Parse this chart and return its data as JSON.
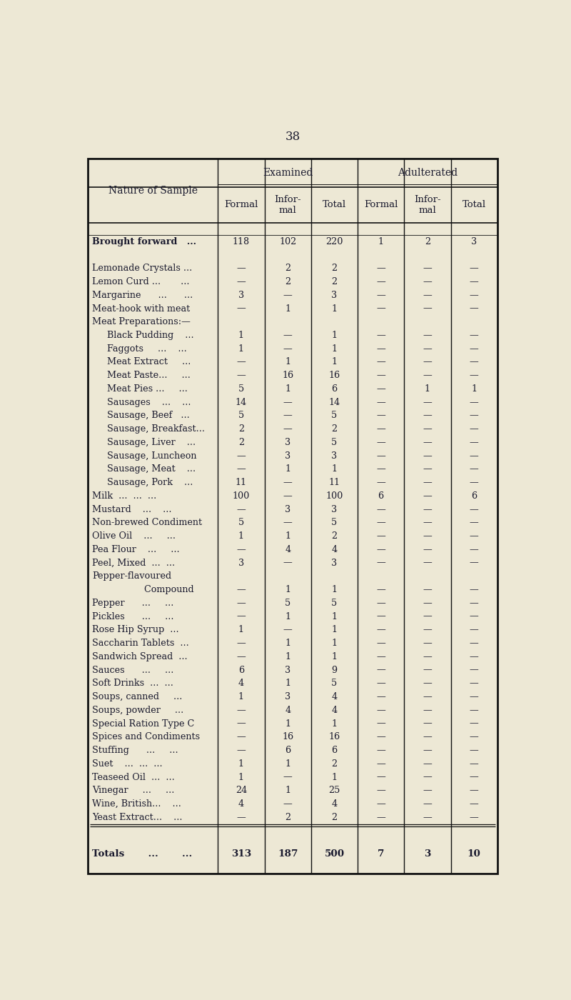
{
  "page_number": "38",
  "bg_color": "#ede8d5",
  "title_group1": "Examined",
  "title_group2": "Adulterated",
  "col_header_left": "Nature of Sample",
  "rows": [
    {
      "label": "Brought forward   ...",
      "indent": 0,
      "bold": true,
      "sep_before": false,
      "values": [
        "118",
        "102",
        "220",
        "1",
        "2",
        "3"
      ]
    },
    {
      "label": "",
      "indent": 0,
      "bold": false,
      "sep_before": false,
      "values": [
        "",
        "",
        "",
        "",
        "",
        ""
      ]
    },
    {
      "label": "Lemonade Crystals ...",
      "indent": 0,
      "bold": false,
      "sep_before": false,
      "values": [
        "—",
        "2",
        "2",
        "—",
        "—",
        "—"
      ]
    },
    {
      "label": "Lemon Curd ...       ...",
      "indent": 0,
      "bold": false,
      "sep_before": false,
      "values": [
        "—",
        "2",
        "2",
        "—",
        "—",
        "—"
      ]
    },
    {
      "label": "Margarine      ...      ...",
      "indent": 0,
      "bold": false,
      "sep_before": false,
      "values": [
        "3",
        "—",
        "3",
        "—",
        "—",
        "—"
      ]
    },
    {
      "label": "Meat-hook with meat",
      "indent": 0,
      "bold": false,
      "sep_before": false,
      "values": [
        "—",
        "1",
        "1",
        "—",
        "—",
        "—"
      ]
    },
    {
      "label": "Meat Preparations:—",
      "indent": 0,
      "bold": false,
      "sep_before": false,
      "values": [
        "",
        "",
        "",
        "",
        "",
        ""
      ]
    },
    {
      "label": "  Black Pudding    ...",
      "indent": 1,
      "bold": false,
      "sep_before": false,
      "values": [
        "1",
        "—",
        "1",
        "—",
        "—",
        "—"
      ]
    },
    {
      "label": "  Faggots     ...    ...",
      "indent": 1,
      "bold": false,
      "sep_before": false,
      "values": [
        "1",
        "—",
        "1",
        "—",
        "—",
        "—"
      ]
    },
    {
      "label": "  Meat Extract     ...",
      "indent": 1,
      "bold": false,
      "sep_before": false,
      "values": [
        "—",
        "1",
        "1",
        "—",
        "—",
        "—"
      ]
    },
    {
      "label": "  Meat Paste...     ...",
      "indent": 1,
      "bold": false,
      "sep_before": false,
      "values": [
        "—",
        "16",
        "16",
        "—",
        "—",
        "—"
      ]
    },
    {
      "label": "  Meat Pies ...     ...",
      "indent": 1,
      "bold": false,
      "sep_before": false,
      "values": [
        "5",
        "1",
        "6",
        "—",
        "1",
        "1"
      ]
    },
    {
      "label": "  Sausages    ...    ...",
      "indent": 1,
      "bold": false,
      "sep_before": false,
      "values": [
        "14",
        "—",
        "14",
        "—",
        "—",
        "—"
      ]
    },
    {
      "label": "  Sausage, Beef   ...",
      "indent": 1,
      "bold": false,
      "sep_before": false,
      "values": [
        "5",
        "—",
        "5",
        "—",
        "—",
        "—"
      ]
    },
    {
      "label": "  Sausage, Breakfast...",
      "indent": 1,
      "bold": false,
      "sep_before": false,
      "values": [
        "2",
        "—",
        "2",
        "—",
        "—",
        "—"
      ]
    },
    {
      "label": "  Sausage, Liver    ...",
      "indent": 1,
      "bold": false,
      "sep_before": false,
      "values": [
        "2",
        "3",
        "5",
        "—",
        "—",
        "—"
      ]
    },
    {
      "label": "  Sausage, Luncheon",
      "indent": 1,
      "bold": false,
      "sep_before": false,
      "values": [
        "—",
        "3",
        "3",
        "—",
        "—",
        "—"
      ]
    },
    {
      "label": "  Sausage, Meat    ...",
      "indent": 1,
      "bold": false,
      "sep_before": false,
      "values": [
        "—",
        "1",
        "1",
        "—",
        "—",
        "—"
      ]
    },
    {
      "label": "  Sausage, Pork    ...",
      "indent": 1,
      "bold": false,
      "sep_before": false,
      "values": [
        "11",
        "—",
        "11",
        "—",
        "—",
        "—"
      ]
    },
    {
      "label": "Milk  ...  ...  ...",
      "indent": 0,
      "bold": false,
      "sep_before": false,
      "values": [
        "100",
        "—",
        "100",
        "6",
        "—",
        "6"
      ]
    },
    {
      "label": "Mustard    ...    ...",
      "indent": 0,
      "bold": false,
      "sep_before": false,
      "values": [
        "—",
        "3",
        "3",
        "—",
        "—",
        "—"
      ]
    },
    {
      "label": "Non-brewed Condiment",
      "indent": 0,
      "bold": false,
      "sep_before": false,
      "values": [
        "5",
        "—",
        "5",
        "—",
        "—",
        "—"
      ]
    },
    {
      "label": "Olive Oil    ...     ...",
      "indent": 0,
      "bold": false,
      "sep_before": false,
      "values": [
        "1",
        "1",
        "2",
        "—",
        "—",
        "—"
      ]
    },
    {
      "label": "Pea Flour    ...     ...",
      "indent": 0,
      "bold": false,
      "sep_before": false,
      "values": [
        "—",
        "4",
        "4",
        "—",
        "—",
        "—"
      ]
    },
    {
      "label": "Peel, Mixed  ...  ...",
      "indent": 0,
      "bold": false,
      "sep_before": false,
      "values": [
        "3",
        "—",
        "3",
        "—",
        "—",
        "—"
      ]
    },
    {
      "label": "Pepper-flavoured",
      "indent": 0,
      "bold": false,
      "sep_before": false,
      "values": [
        "",
        "",
        "",
        "",
        "",
        ""
      ]
    },
    {
      "label": "            Compound",
      "indent": 2,
      "bold": false,
      "sep_before": false,
      "values": [
        "—",
        "1",
        "1",
        "—",
        "—",
        "—"
      ]
    },
    {
      "label": "Pepper      ...     ...",
      "indent": 0,
      "bold": false,
      "sep_before": false,
      "values": [
        "—",
        "5",
        "5",
        "—",
        "—",
        "—"
      ]
    },
    {
      "label": "Pickles      ...     ...",
      "indent": 0,
      "bold": false,
      "sep_before": false,
      "values": [
        "—",
        "1",
        "1",
        "—",
        "—",
        "—"
      ]
    },
    {
      "label": "Rose Hip Syrup  ...",
      "indent": 0,
      "bold": false,
      "sep_before": false,
      "values": [
        "1",
        "—",
        "1",
        "—",
        "—",
        "—"
      ]
    },
    {
      "label": "Saccharin Tablets  ...",
      "indent": 0,
      "bold": false,
      "sep_before": false,
      "values": [
        "—",
        "1",
        "1",
        "—",
        "—",
        "—"
      ]
    },
    {
      "label": "Sandwich Spread  ...",
      "indent": 0,
      "bold": false,
      "sep_before": false,
      "values": [
        "—",
        "1",
        "1",
        "—",
        "—",
        "—"
      ]
    },
    {
      "label": "Sauces      ...     ...",
      "indent": 0,
      "bold": false,
      "sep_before": false,
      "values": [
        "6",
        "3",
        "9",
        "—",
        "—",
        "—"
      ]
    },
    {
      "label": "Soft Drinks  ...  ...",
      "indent": 0,
      "bold": false,
      "sep_before": false,
      "values": [
        "4",
        "1",
        "5",
        "—",
        "—",
        "—"
      ]
    },
    {
      "label": "Soups, canned     ...",
      "indent": 0,
      "bold": false,
      "sep_before": false,
      "values": [
        "1",
        "3",
        "4",
        "—",
        "—",
        "—"
      ]
    },
    {
      "label": "Soups, powder     ...",
      "indent": 0,
      "bold": false,
      "sep_before": false,
      "values": [
        "—",
        "4",
        "4",
        "—",
        "—",
        "—"
      ]
    },
    {
      "label": "Special Ration Type C",
      "indent": 0,
      "bold": false,
      "sep_before": false,
      "values": [
        "—",
        "1",
        "1",
        "—",
        "—",
        "—"
      ]
    },
    {
      "label": "Spices and Condiments",
      "indent": 0,
      "bold": false,
      "sep_before": false,
      "values": [
        "—",
        "16",
        "16",
        "—",
        "—",
        "—"
      ]
    },
    {
      "label": "Stuffing      ...     ...",
      "indent": 0,
      "bold": false,
      "sep_before": false,
      "values": [
        "—",
        "6",
        "6",
        "—",
        "—",
        "—"
      ]
    },
    {
      "label": "Suet    ...  ...  ...",
      "indent": 0,
      "bold": false,
      "sep_before": false,
      "values": [
        "1",
        "1",
        "2",
        "—",
        "—",
        "—"
      ]
    },
    {
      "label": "Teaseed Oil  ...  ...",
      "indent": 0,
      "bold": false,
      "sep_before": false,
      "values": [
        "1",
        "—",
        "1",
        "—",
        "—",
        "—"
      ]
    },
    {
      "label": "Vinegar     ...     ...",
      "indent": 0,
      "bold": false,
      "sep_before": false,
      "values": [
        "24",
        "1",
        "25",
        "—",
        "—",
        "—"
      ]
    },
    {
      "label": "Wine, British...    ...",
      "indent": 0,
      "bold": false,
      "sep_before": false,
      "values": [
        "4",
        "—",
        "4",
        "—",
        "—",
        "—"
      ]
    },
    {
      "label": "Yeast Extract...    ...",
      "indent": 0,
      "bold": false,
      "sep_before": false,
      "values": [
        "—",
        "2",
        "2",
        "—",
        "—",
        "—"
      ]
    }
  ],
  "totals_label": "Totals       ...       ...",
  "totals_values": [
    "313",
    "187",
    "500",
    "7",
    "3",
    "10"
  ],
  "text_color": "#1a1a2e",
  "line_color": "#111111",
  "font_size": 9.2,
  "header_font_size": 10.0,
  "page_num_fontsize": 12
}
